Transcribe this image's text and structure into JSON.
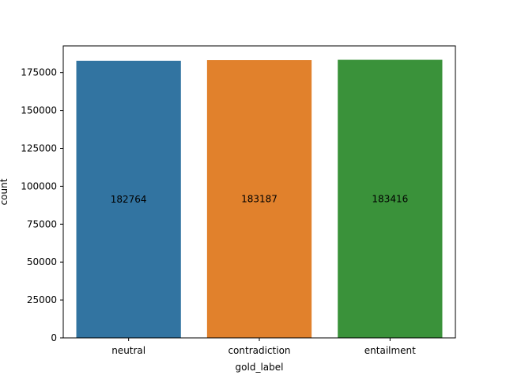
{
  "chart_data": {
    "type": "bar",
    "title": "",
    "xlabel": "gold_label",
    "ylabel": "count",
    "categories": [
      "neutral",
      "contradiction",
      "entailment"
    ],
    "values": [
      182764,
      183187,
      183416
    ],
    "data_labels": [
      "182764",
      "183187",
      "183416"
    ],
    "colors": [
      "#3274a1",
      "#e1812c",
      "#3a923a"
    ],
    "ylim": [
      0,
      192583
    ],
    "yticks": [
      0,
      25000,
      50000,
      75000,
      100000,
      125000,
      150000,
      175000
    ],
    "ytick_labels": [
      "0",
      "25000",
      "50000",
      "75000",
      "100000",
      "125000",
      "150000",
      "175000"
    ],
    "grid": false,
    "legend": "none"
  }
}
